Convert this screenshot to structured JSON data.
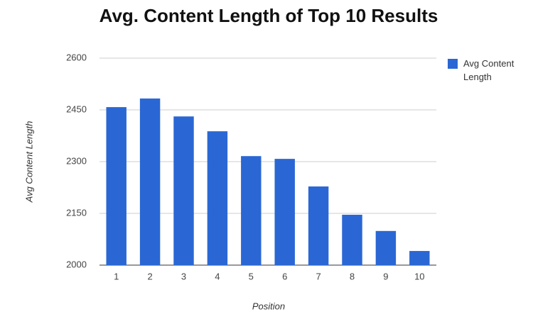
{
  "chart_data": {
    "type": "bar",
    "title": "Avg. Content Length of Top 10 Results",
    "x_label": "Position",
    "y_label": "Avg Content Length",
    "categories": [
      "1",
      "2",
      "3",
      "4",
      "5",
      "6",
      "7",
      "8",
      "9",
      "10"
    ],
    "series": [
      {
        "name": "Avg Content Length",
        "color": "#2a67d4",
        "values": [
          2458,
          2483,
          2431,
          2388,
          2316,
          2308,
          2228,
          2146,
          2099,
          2041
        ]
      }
    ],
    "ylim": [
      2000,
      2600
    ],
    "yticks": [
      2000,
      2150,
      2300,
      2450,
      2600
    ],
    "grid": true,
    "legend": "right"
  }
}
